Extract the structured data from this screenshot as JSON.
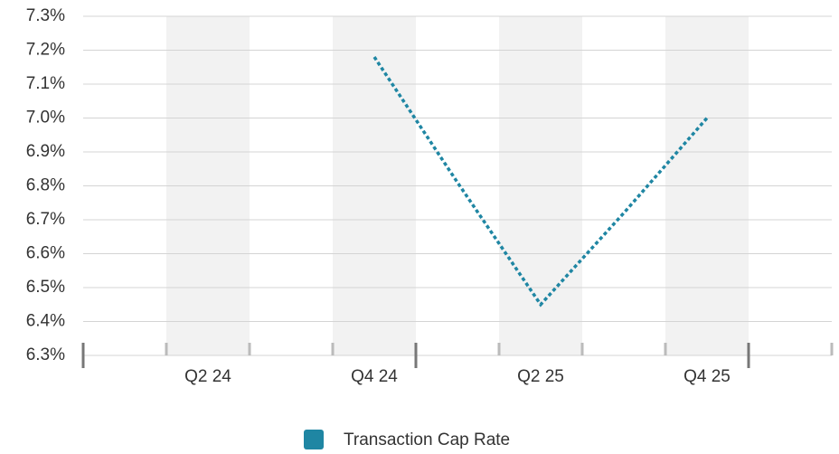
{
  "chart_data": {
    "type": "line",
    "categories": [
      null,
      "Q2 24",
      null,
      "Q4 24",
      null,
      "Q2 25",
      null,
      "Q4 25",
      null
    ],
    "series": [
      {
        "name": "Transaction Cap Rate",
        "color": "#1f86a3",
        "values": [
          null,
          null,
          null,
          7.18,
          6.81,
          6.45,
          6.72,
          7.0,
          null
        ]
      }
    ],
    "ylim": [
      6.3,
      7.3
    ],
    "yticks": [
      {
        "value": 6.3,
        "label": "6.3%"
      },
      {
        "value": 6.4,
        "label": "6.4%"
      },
      {
        "value": 6.5,
        "label": "6.5%"
      },
      {
        "value": 6.6,
        "label": "6.6%"
      },
      {
        "value": 6.7,
        "label": "6.7%"
      },
      {
        "value": 6.8,
        "label": "6.8%"
      },
      {
        "value": 6.9,
        "label": "6.9%"
      },
      {
        "value": 7.0,
        "label": "7.0%"
      },
      {
        "value": 7.1,
        "label": "7.1%"
      },
      {
        "value": 7.2,
        "label": "7.2%"
      },
      {
        "value": 7.3,
        "label": "7.3%"
      }
    ],
    "grid": true,
    "legend": "bottom"
  }
}
